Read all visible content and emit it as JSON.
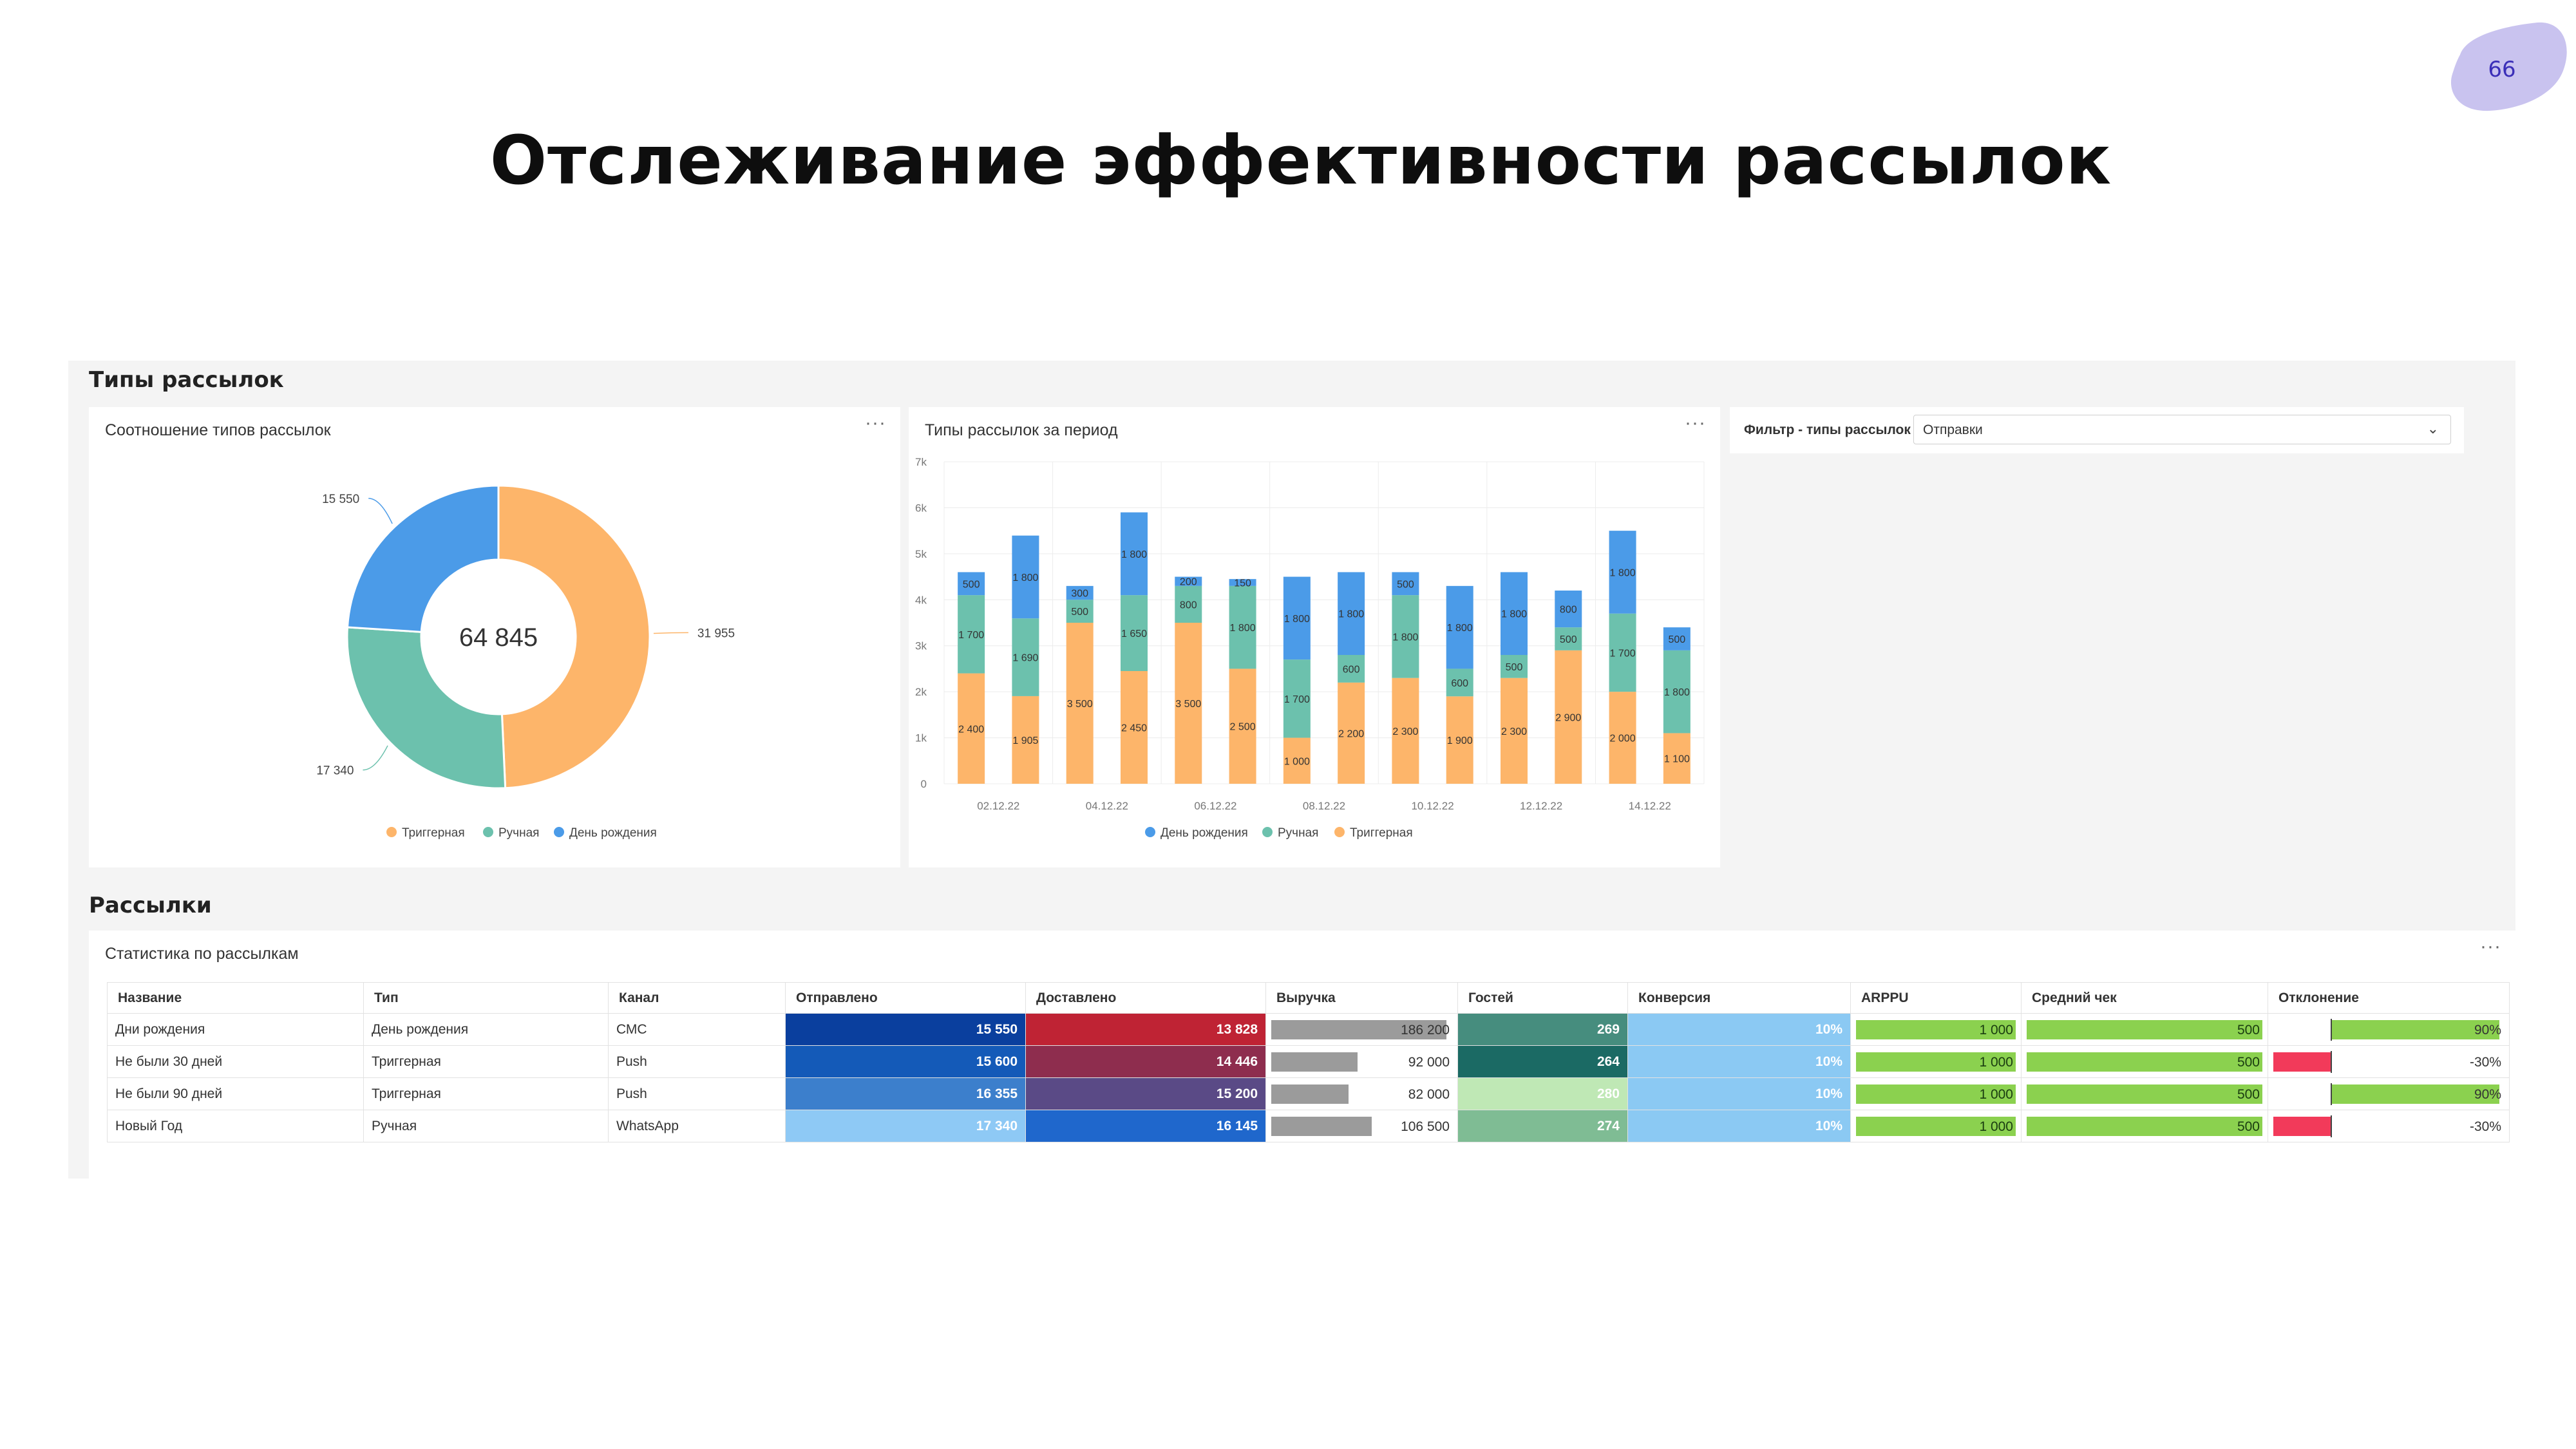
{
  "page_number": "66",
  "slide_title": "Отслеживание эффективности рассылок",
  "section_types_title": "Типы рассылок",
  "section_mailings_title": "Рассылки",
  "colors": {
    "trigger": "#fdb56a",
    "manual": "#6cc1ad",
    "birthday": "#4b9be8",
    "badge": "#c9c3ef",
    "positive_bar": "#8bd14f",
    "negative_bar": "#f23a5a"
  },
  "donut": {
    "title": "Соотношение типов рассылок",
    "menu_icon": "more-dots-icon",
    "center_label": "64 845",
    "slice_labels": [
      "31 955",
      "17 340",
      "15 550"
    ],
    "legend": [
      "Триггерная",
      "Ручная",
      "День рождения"
    ]
  },
  "bar_panel": {
    "title": "Типы рассылок за период",
    "menu_icon": "more-dots-icon",
    "legend": [
      "День рождения",
      "Ручная",
      "Триггерная"
    ]
  },
  "filter": {
    "label": "Фильтр - типы рассылок",
    "value": "Отправки",
    "icon": "chevron-down-icon"
  },
  "table": {
    "title": "Статистика по рассылкам",
    "menu_icon": "more-dots-icon",
    "headers": [
      "Название",
      "Тип",
      "Канал",
      "Отправлено",
      "Доставлено",
      "Выручка",
      "Гостей",
      "Конверсия",
      "ARPPU",
      "Средний чек",
      "Отклонение"
    ],
    "rows": [
      {
        "name": "Дни рождения",
        "type": "День рождения",
        "channel": "СМС",
        "sent": "15 550",
        "delivered": "13 828",
        "revenue": "186 200",
        "guests": "269",
        "conversion": "10%",
        "arppu": "1 000",
        "avg_check": "500",
        "deviation": "90%"
      },
      {
        "name": "Не были 30 дней",
        "type": "Триггерная",
        "channel": "Push",
        "sent": "15 600",
        "delivered": "14 446",
        "revenue": "92 000",
        "guests": "264",
        "conversion": "10%",
        "arppu": "1 000",
        "avg_check": "500",
        "deviation": "-30%"
      },
      {
        "name": "Не были 90 дней",
        "type": "Триггерная",
        "channel": "Push",
        "sent": "16 355",
        "delivered": "15 200",
        "revenue": "82 000",
        "guests": "280",
        "conversion": "10%",
        "arppu": "1 000",
        "avg_check": "500",
        "deviation": "90%"
      },
      {
        "name": "Новый Год",
        "type": "Ручная",
        "channel": "WhatsApp",
        "sent": "17 340",
        "delivered": "16 145",
        "revenue": "106 500",
        "guests": "274",
        "conversion": "10%",
        "arppu": "1 000",
        "avg_check": "500",
        "deviation": "-30%"
      }
    ],
    "cell_colors": {
      "sent": [
        "#0a3f9e",
        "#145ab8",
        "#3c7fcc",
        "#8ec9f5"
      ],
      "delivered": [
        "#bf2334",
        "#8e2d4e",
        "#5a4a86",
        "#1f67cc"
      ],
      "guests": [
        "#468d7e",
        "#1b6a64",
        "#bfe8b5",
        "#7fbc94"
      ],
      "conversion": [
        "#8bc9f3",
        "#8bc9f3",
        "#8bc9f3",
        "#8bc9f3"
      ]
    },
    "revenue_share": [
      1.0,
      0.494,
      0.44,
      0.572
    ],
    "deviation_share": [
      0.9,
      -0.3,
      0.9,
      -0.3
    ]
  },
  "chart_data": [
    {
      "type": "pie",
      "title": "Соотношение типов рассылок",
      "categories": [
        "Триггерная",
        "Ручная",
        "День рождения"
      ],
      "values": [
        31955,
        17340,
        15550
      ],
      "total": 64845
    },
    {
      "type": "bar",
      "stacked": true,
      "title": "Типы рассылок за период",
      "ylim": [
        0,
        7000
      ],
      "y_ticks": [
        "0",
        "1k",
        "2k",
        "3k",
        "4k",
        "5k",
        "6k",
        "7k"
      ],
      "x_tick_labels": [
        "02.12.22",
        "04.12.22",
        "06.12.22",
        "08.12.22",
        "10.12.22",
        "12.12.22",
        "14.12.22"
      ],
      "legend_position": "bottom",
      "grid": true,
      "series": [
        {
          "name": "Триггерная",
          "values": [
            2400,
            1905,
            3500,
            2450,
            3500,
            2500,
            1000,
            2200,
            2300,
            1900,
            2300,
            2900,
            2000,
            1100
          ],
          "labels": [
            "2 400",
            "1 905",
            "3 500",
            "2 450",
            "3 500",
            "2 500",
            "1 000",
            "2 200",
            "2 300",
            "1 900",
            "2 300",
            "2 900",
            "2 000",
            "1 100"
          ]
        },
        {
          "name": "Ручная",
          "values": [
            1700,
            1690,
            500,
            1650,
            800,
            1800,
            1700,
            600,
            1800,
            600,
            500,
            500,
            1700,
            1800
          ],
          "labels": [
            "1 700",
            "1 690",
            "500",
            "1 650",
            "800",
            "1 800",
            "1 700",
            "600",
            "1 800",
            "600",
            "500",
            "500",
            "1 700",
            "1 800"
          ]
        },
        {
          "name": "День рождения",
          "values": [
            500,
            1800,
            300,
            1800,
            200,
            150,
            1800,
            1800,
            500,
            1800,
            1800,
            800,
            1800,
            500
          ],
          "labels": [
            "500",
            "1 800",
            "300",
            "1 800",
            "200",
            "150",
            "1 800",
            "1 800",
            "500",
            "1 800",
            "1 800",
            "800",
            "1 800",
            "500"
          ]
        }
      ]
    }
  ]
}
